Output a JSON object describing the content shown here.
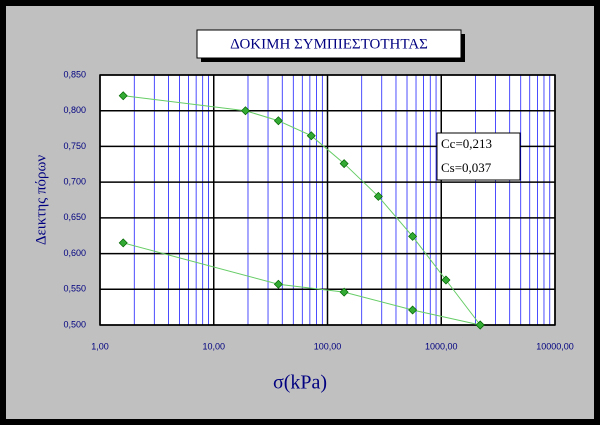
{
  "chart_data": {
    "type": "line",
    "title": "ΔΟΚΙΜΗ ΣΥΜΠΙΕΣΤΟΤΗΤΑΣ",
    "x_label": "σ(kPa)",
    "y_label": "Δεικτης πόρων",
    "annotations": [
      "Cc=0,213",
      "Cs=0,037"
    ],
    "x_log": true,
    "minor_grid": true,
    "grid": true,
    "xlim": [
      1,
      10000
    ],
    "xticks": [
      {
        "value": 1,
        "label": "1,00"
      },
      {
        "value": 10,
        "label": "10,00"
      },
      {
        "value": 100,
        "label": "100,00"
      },
      {
        "value": 1000,
        "label": "1000,00"
      },
      {
        "value": 10000,
        "label": "10000,00"
      }
    ],
    "ylim": [
      0.5,
      0.85
    ],
    "yticks": [
      {
        "value": 0.5,
        "label": "0,500"
      },
      {
        "value": 0.55,
        "label": "0,550"
      },
      {
        "value": 0.6,
        "label": "0,600"
      },
      {
        "value": 0.65,
        "label": "0,650"
      },
      {
        "value": 0.7,
        "label": "0,700"
      },
      {
        "value": 0.75,
        "label": "0,750"
      },
      {
        "value": 0.8,
        "label": "0,800"
      },
      {
        "value": 0.85,
        "label": "0,850"
      }
    ],
    "series": [
      {
        "color": "#66cc66",
        "x": [
          1.6,
          19,
          37,
          72,
          140,
          280,
          560,
          1100,
          2200
        ],
        "values": [
          0.821,
          0.8,
          0.786,
          0.765,
          0.726,
          0.68,
          0.624,
          0.563,
          0.5
        ]
      },
      {
        "color": "#66cc66",
        "x": [
          2200,
          560,
          140,
          37,
          1.6
        ],
        "values": [
          0.5,
          0.521,
          0.546,
          0.557,
          0.615
        ]
      }
    ]
  }
}
